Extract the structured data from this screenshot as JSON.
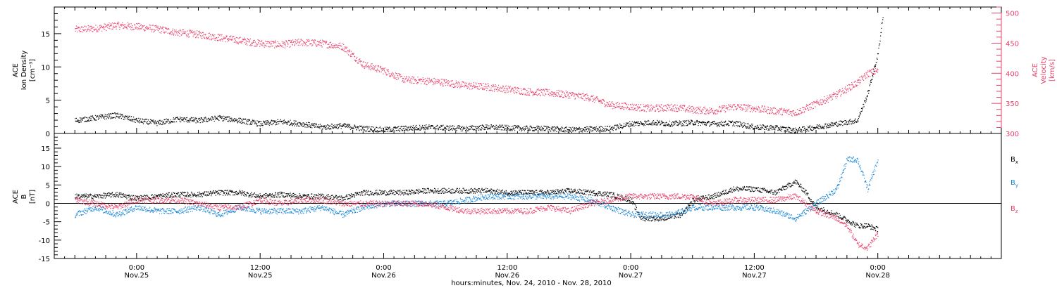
{
  "chart_data": [
    {
      "type": "scatter",
      "panel": "ion-density-velocity",
      "ylabel_left": [
        "ACE",
        "Ion Density",
        "[cm⁻³]"
      ],
      "ylabel_right": [
        "ACE",
        "Velocity",
        "[km/s]"
      ],
      "ylim_left": [
        0,
        19
      ],
      "ylim_right": [
        300,
        510
      ],
      "yticks_left": [
        "0",
        "5",
        "10",
        "15"
      ],
      "yticks_right": [
        "300",
        "350",
        "400",
        "450",
        "500"
      ],
      "series": [
        {
          "axis": "left",
          "color": "#000000",
          "points": [
            [
              -6,
              2.0
            ],
            [
              -4,
              2.4
            ],
            [
              -2,
              2.8
            ],
            [
              0,
              2.0
            ],
            [
              2,
              1.6
            ],
            [
              4,
              2.2
            ],
            [
              6,
              2.0
            ],
            [
              8,
              2.4
            ],
            [
              10,
              2.0
            ],
            [
              12,
              1.5
            ],
            [
              14,
              1.8
            ],
            [
              16,
              1.5
            ],
            [
              18,
              1.0
            ],
            [
              20,
              1.2
            ],
            [
              22,
              0.8
            ],
            [
              24,
              0.6
            ],
            [
              26,
              0.8
            ],
            [
              28,
              1.0
            ],
            [
              30,
              0.9
            ],
            [
              32,
              0.8
            ],
            [
              34,
              1.0
            ],
            [
              36,
              0.9
            ],
            [
              38,
              0.8
            ],
            [
              40,
              0.8
            ],
            [
              42,
              0.6
            ],
            [
              44,
              0.7
            ],
            [
              46,
              0.8
            ],
            [
              48,
              1.5
            ],
            [
              50,
              1.7
            ],
            [
              52,
              1.5
            ],
            [
              54,
              1.7
            ],
            [
              56,
              1.5
            ],
            [
              58,
              1.6
            ],
            [
              60,
              1.0
            ],
            [
              62,
              0.9
            ],
            [
              64,
              0.5
            ],
            [
              66,
              1.0
            ],
            [
              68,
              1.5
            ],
            [
              70,
              2.0
            ],
            [
              71,
              6.0
            ],
            [
              72,
              12.0
            ],
            [
              72.5,
              18.0
            ]
          ]
        },
        {
          "axis": "right",
          "color": "#e8436c",
          "points": [
            [
              -6,
              473
            ],
            [
              -4,
              475
            ],
            [
              -2,
              480
            ],
            [
              0,
              478
            ],
            [
              2,
              474
            ],
            [
              4,
              468
            ],
            [
              6,
              465
            ],
            [
              8,
              460
            ],
            [
              10,
              455
            ],
            [
              12,
              450
            ],
            [
              14,
              448
            ],
            [
              16,
              452
            ],
            [
              18,
              450
            ],
            [
              20,
              445
            ],
            [
              22,
              415
            ],
            [
              24,
              405
            ],
            [
              26,
              390
            ],
            [
              28,
              388
            ],
            [
              30,
              385
            ],
            [
              32,
              380
            ],
            [
              34,
              378
            ],
            [
              36,
              374
            ],
            [
              38,
              370
            ],
            [
              40,
              368
            ],
            [
              42,
              365
            ],
            [
              44,
              360
            ],
            [
              46,
              348
            ],
            [
              48,
              345
            ],
            [
              50,
              342
            ],
            [
              52,
              344
            ],
            [
              54,
              340
            ],
            [
              56,
              338
            ],
            [
              58,
              345
            ],
            [
              60,
              342
            ],
            [
              62,
              338
            ],
            [
              64,
              335
            ],
            [
              66,
              350
            ],
            [
              68,
              365
            ],
            [
              70,
              385
            ],
            [
              71,
              400
            ],
            [
              72,
              405
            ]
          ]
        }
      ]
    },
    {
      "type": "scatter",
      "panel": "magnetic-field",
      "ylabel_left": [
        "ACE",
        "B",
        "[nT]"
      ],
      "ylim": [
        -15,
        19
      ],
      "yticks": [
        "-15",
        "-10",
        "-5",
        "0",
        "5",
        "10",
        "15"
      ],
      "series": [
        {
          "name": "Bx",
          "color": "#000000",
          "points": [
            [
              -6,
              2
            ],
            [
              -4,
              2
            ],
            [
              -2,
              2.5
            ],
            [
              0,
              1.5
            ],
            [
              2,
              2
            ],
            [
              4,
              2.5
            ],
            [
              6,
              2.5
            ],
            [
              8,
              3
            ],
            [
              10,
              3
            ],
            [
              12,
              2
            ],
            [
              14,
              2.5
            ],
            [
              16,
              2
            ],
            [
              18,
              2
            ],
            [
              20,
              1.5
            ],
            [
              22,
              3
            ],
            [
              24,
              3
            ],
            [
              26,
              3
            ],
            [
              28,
              3.5
            ],
            [
              30,
              3.5
            ],
            [
              32,
              3.5
            ],
            [
              34,
              3.5
            ],
            [
              36,
              3
            ],
            [
              38,
              3
            ],
            [
              40,
              3
            ],
            [
              42,
              3.5
            ],
            [
              44,
              3
            ],
            [
              46,
              2.5
            ],
            [
              48,
              1
            ],
            [
              49,
              -4
            ],
            [
              51,
              -4
            ],
            [
              53,
              -3
            ],
            [
              54,
              1
            ],
            [
              56,
              2
            ],
            [
              58,
              4
            ],
            [
              60,
              4
            ],
            [
              62,
              3
            ],
            [
              64,
              6
            ],
            [
              65,
              3
            ],
            [
              66,
              -1
            ],
            [
              68,
              -3
            ],
            [
              70,
              -6
            ],
            [
              71,
              -6
            ],
            [
              72,
              -7
            ]
          ]
        },
        {
          "name": "By",
          "color": "#1a86d8",
          "points": [
            [
              -6,
              -3
            ],
            [
              -4,
              -1
            ],
            [
              -2,
              -3
            ],
            [
              0,
              -1
            ],
            [
              2,
              -2
            ],
            [
              4,
              -2
            ],
            [
              6,
              -1
            ],
            [
              8,
              -3
            ],
            [
              10,
              -1
            ],
            [
              12,
              -2
            ],
            [
              14,
              -2
            ],
            [
              16,
              -2
            ],
            [
              18,
              -1
            ],
            [
              20,
              -3
            ],
            [
              22,
              -1
            ],
            [
              24,
              0
            ],
            [
              26,
              0
            ],
            [
              28,
              0
            ],
            [
              30,
              0
            ],
            [
              32,
              1
            ],
            [
              34,
              2
            ],
            [
              36,
              2
            ],
            [
              38,
              2
            ],
            [
              40,
              2
            ],
            [
              42,
              2
            ],
            [
              44,
              1
            ],
            [
              46,
              -1
            ],
            [
              48,
              -3
            ],
            [
              50,
              -3
            ],
            [
              52,
              -3
            ],
            [
              54,
              -1
            ],
            [
              56,
              -1
            ],
            [
              58,
              -1
            ],
            [
              60,
              -1
            ],
            [
              62,
              -2
            ],
            [
              64,
              -4
            ],
            [
              66,
              0
            ],
            [
              68,
              4
            ],
            [
              69,
              12
            ],
            [
              70,
              12
            ],
            [
              71,
              4
            ],
            [
              72,
              12
            ]
          ]
        },
        {
          "name": "Bz",
          "color": "#e8436c",
          "points": [
            [
              -6,
              1
            ],
            [
              -4,
              0
            ],
            [
              -2,
              -1
            ],
            [
              0,
              1
            ],
            [
              2,
              1
            ],
            [
              4,
              1
            ],
            [
              6,
              0
            ],
            [
              8,
              -1
            ],
            [
              10,
              -1
            ],
            [
              12,
              1
            ],
            [
              14,
              0
            ],
            [
              16,
              1
            ],
            [
              18,
              1
            ],
            [
              20,
              0
            ],
            [
              22,
              0
            ],
            [
              24,
              0
            ],
            [
              26,
              0
            ],
            [
              28,
              0
            ],
            [
              30,
              -1
            ],
            [
              32,
              -2
            ],
            [
              34,
              -2
            ],
            [
              36,
              -2
            ],
            [
              38,
              -2
            ],
            [
              40,
              -1
            ],
            [
              42,
              -2
            ],
            [
              44,
              0
            ],
            [
              46,
              1
            ],
            [
              48,
              2
            ],
            [
              50,
              2
            ],
            [
              52,
              2
            ],
            [
              54,
              2
            ],
            [
              56,
              0
            ],
            [
              58,
              1
            ],
            [
              60,
              1
            ],
            [
              62,
              1
            ],
            [
              64,
              2
            ],
            [
              66,
              -2
            ],
            [
              68,
              -4
            ],
            [
              69,
              -6
            ],
            [
              70,
              -11
            ],
            [
              71,
              -12
            ],
            [
              72,
              -8
            ]
          ]
        }
      ],
      "legend": [
        "Bx",
        "By",
        "Bz"
      ]
    }
  ],
  "x_axis": {
    "range_hours": [
      -8,
      84
    ],
    "ticks": [
      {
        "t": 0,
        "time": "0:00",
        "date": "Nov.25"
      },
      {
        "t": 12,
        "time": "12:00",
        "date": "Nov.25"
      },
      {
        "t": 24,
        "time": "0:00",
        "date": "Nov.26"
      },
      {
        "t": 36,
        "time": "12:00",
        "date": "Nov.26"
      },
      {
        "t": 48,
        "time": "0:00",
        "date": "Nov.27"
      },
      {
        "t": 60,
        "time": "12:00",
        "date": "Nov.27"
      },
      {
        "t": 72,
        "time": "0:00",
        "date": "Nov.28"
      }
    ],
    "title": "hours:minutes, Nov. 24, 2010 - Nov. 28, 2010"
  },
  "legend_labels": {
    "bx": "B",
    "by": "B",
    "bz": "B",
    "bx_sub": "x",
    "by_sub": "y",
    "bz_sub": "z"
  }
}
